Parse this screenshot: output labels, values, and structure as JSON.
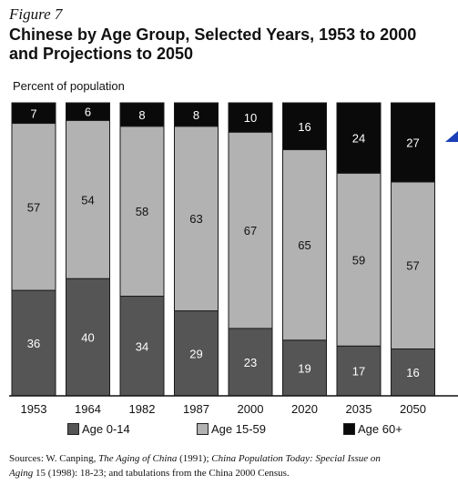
{
  "figure_label": "Figure 7",
  "title_line1": "Chinese by Age Group, Selected Years, 1953 to 2000",
  "title_line2": "and Projections to 2050",
  "ylabel": "Percent of population",
  "colors": {
    "age_0_14": "#555555",
    "age_15_59": "#b2b2b2",
    "age_60_plus": "#0a0a0a"
  },
  "chart_data": {
    "type": "bar",
    "stacked": true,
    "title": "Chinese by Age Group, Selected Years, 1953 to 2000 and Projections to 2050",
    "ylabel": "Percent of population",
    "xlabel": "",
    "ylim": [
      0,
      100
    ],
    "grid": false,
    "legend_position": "bottom",
    "categories": [
      "1953",
      "1964",
      "1982",
      "1987",
      "2000",
      "2020",
      "2035",
      "2050"
    ],
    "series": [
      {
        "name": "Age 0-14",
        "values": [
          36,
          40,
          34,
          29,
          23,
          19,
          17,
          16
        ]
      },
      {
        "name": "Age 15-59",
        "values": [
          57,
          54,
          58,
          63,
          67,
          65,
          59,
          57
        ]
      },
      {
        "name": "Age 60+",
        "values": [
          7,
          6,
          8,
          8,
          10,
          16,
          24,
          27
        ]
      }
    ]
  },
  "source": {
    "prefix": "Sources: W. Canping, ",
    "title1": "The Aging of China",
    "mid1": " (1991); ",
    "title2": "China Population Today: Special Issue on",
    "line2_title": "Aging",
    "line2_rest": " 15 (1998): 18-23; and tabulations from the China 2000 Census."
  }
}
